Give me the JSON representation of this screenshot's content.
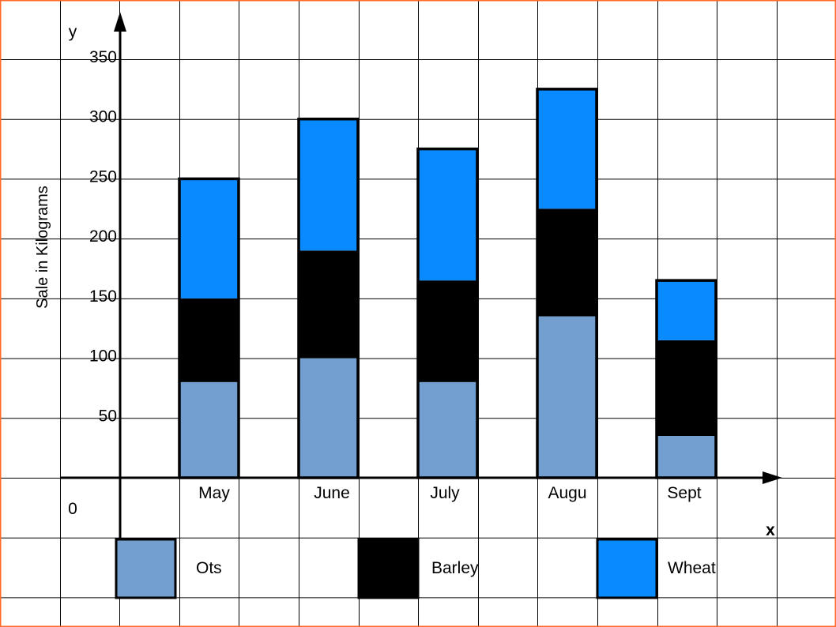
{
  "chart_data": {
    "type": "bar",
    "stacked": true,
    "ylabel": "Sale in Kilograms",
    "xaxis_letter": "x",
    "yaxis_letter": "y",
    "origin_label": "0",
    "categories": [
      "May",
      "June",
      "July",
      "Augu",
      "Sept"
    ],
    "series": [
      {
        "name": "Ots",
        "color": "#729fcf",
        "values": [
          80,
          100,
          80,
          135,
          35
        ]
      },
      {
        "name": "Barley",
        "color": "#000000",
        "values": [
          70,
          90,
          85,
          90,
          80
        ]
      },
      {
        "name": "Wheat",
        "color": "#0a8aff",
        "values": [
          100,
          110,
          110,
          100,
          50
        ]
      }
    ],
    "yticks": [
      50,
      100,
      150,
      200,
      250,
      300,
      350
    ],
    "ylim": [
      0,
      350
    ],
    "grid": true,
    "legend_position": "bottom"
  }
}
